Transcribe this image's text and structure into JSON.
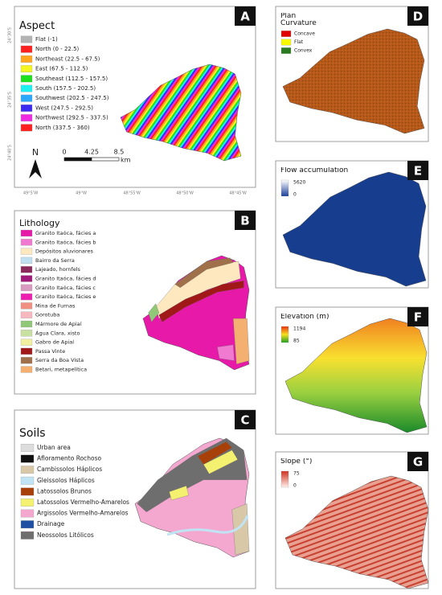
{
  "panels": [
    {
      "letter": "A",
      "title": "Aspect",
      "kind": "categorical",
      "legend": [
        {
          "label": "Flat (-1)",
          "color": "#b3b3b3"
        },
        {
          "label": "North (0 - 22.5)",
          "color": "#ff2020"
        },
        {
          "label": "Northeast (22.5 - 67.5)",
          "color": "#ffa51f"
        },
        {
          "label": "East (67.5 - 112.5)",
          "color": "#f5f51f"
        },
        {
          "label": "Southeast (112.5 - 157.5)",
          "color": "#1fe01f"
        },
        {
          "label": "South (157.5 - 202.5)",
          "color": "#1ff0f0"
        },
        {
          "label": "Southwest (202.5 - 247.5)",
          "color": "#2aa8ff"
        },
        {
          "label": "West (247.5 - 292.5)",
          "color": "#3b2af0"
        },
        {
          "label": "Northwest (292.5 - 337.5)",
          "color": "#f02ae0"
        },
        {
          "label": "North (337.5 - 360)",
          "color": "#ff2020"
        }
      ],
      "lat_labels": [
        "24°30'S",
        "24°35'S",
        "24°40'S"
      ],
      "lon_labels": [
        "49°5'W",
        "49°W",
        "48°55'W",
        "48°50'W",
        "48°45'W"
      ],
      "north": "N",
      "scale": [
        0,
        4.25,
        8.5
      ],
      "scale_unit": "km"
    },
    {
      "letter": "B",
      "title": "Lithology",
      "kind": "categorical",
      "legend": [
        {
          "label": "Granito Itaóca, fácies a",
          "color": "#e619a8"
        },
        {
          "label": "Granito Itaóca, fácies b",
          "color": "#f07ad0"
        },
        {
          "label": "Depósitos aluvionares",
          "color": "#fde8c0"
        },
        {
          "label": "Bairro da Serra",
          "color": "#bfe0f0"
        },
        {
          "label": "Lajeado, hornfels",
          "color": "#8b2a5a"
        },
        {
          "label": "Granito Itaóca, fácies d",
          "color": "#a01a7a"
        },
        {
          "label": "Granito Itaóca, fácies c",
          "color": "#d89ac0"
        },
        {
          "label": "Granito Itaóca, fácies e",
          "color": "#ee1fb0"
        },
        {
          "label": "Mina de Furnas",
          "color": "#f09080"
        },
        {
          "label": "Gorotuba",
          "color": "#f8b8c0"
        },
        {
          "label": "Mármore de Apiaí",
          "color": "#90c878"
        },
        {
          "label": "Água Clara, xisto",
          "color": "#c8e0a0"
        },
        {
          "label": "Gabro de Apiaí",
          "color": "#f0f0a0"
        },
        {
          "label": "Passa Vinte",
          "color": "#a01818"
        },
        {
          "label": "Serra da Boa Vista",
          "color": "#a0704a"
        },
        {
          "label": "Betari, metapelítica",
          "color": "#f4b070"
        }
      ]
    },
    {
      "letter": "C",
      "title": "Soils",
      "kind": "categorical",
      "legend": [
        {
          "label": "Urban area",
          "color": "#dddddd"
        },
        {
          "label": "Afloramento Rochoso",
          "color": "#111111"
        },
        {
          "label": "Cambissolos Háplicos",
          "color": "#d8c8a8"
        },
        {
          "label": "Gleissolos Háplicos",
          "color": "#c0e4f4"
        },
        {
          "label": "Latossolos Brunos",
          "color": "#a8400a"
        },
        {
          "label": "Latossolos Vermelho-Amarelos",
          "color": "#f4f070"
        },
        {
          "label": "Argissolos Vermelho-Amarelos",
          "color": "#f4a8d0"
        },
        {
          "label": "Drainage",
          "color": "#1f4fa0"
        },
        {
          "label": "Neossolos Litólicos",
          "color": "#6e6e6e"
        }
      ]
    },
    {
      "letter": "D",
      "title": "Plan Curvature",
      "kind": "categorical",
      "legend": [
        {
          "label": "Concave",
          "color": "#e00000"
        },
        {
          "label": "Flat",
          "color": "#f8f800"
        },
        {
          "label": "Convex",
          "color": "#2a7a20"
        }
      ]
    },
    {
      "letter": "E",
      "title": "Flow accumulation",
      "kind": "gradient",
      "max": 5620,
      "min": 0,
      "colors": [
        "#ffffff",
        "#1a3f9a"
      ]
    },
    {
      "letter": "F",
      "title": "Elevation (m)",
      "kind": "gradient",
      "max": 1194,
      "min": 85,
      "colors": [
        "#e83010",
        "#f8e020",
        "#20a020"
      ]
    },
    {
      "letter": "G",
      "title": "Slope (°)",
      "kind": "gradient",
      "max": 75,
      "min": 0,
      "colors": [
        "#d03020",
        "#fff0ea"
      ]
    }
  ]
}
